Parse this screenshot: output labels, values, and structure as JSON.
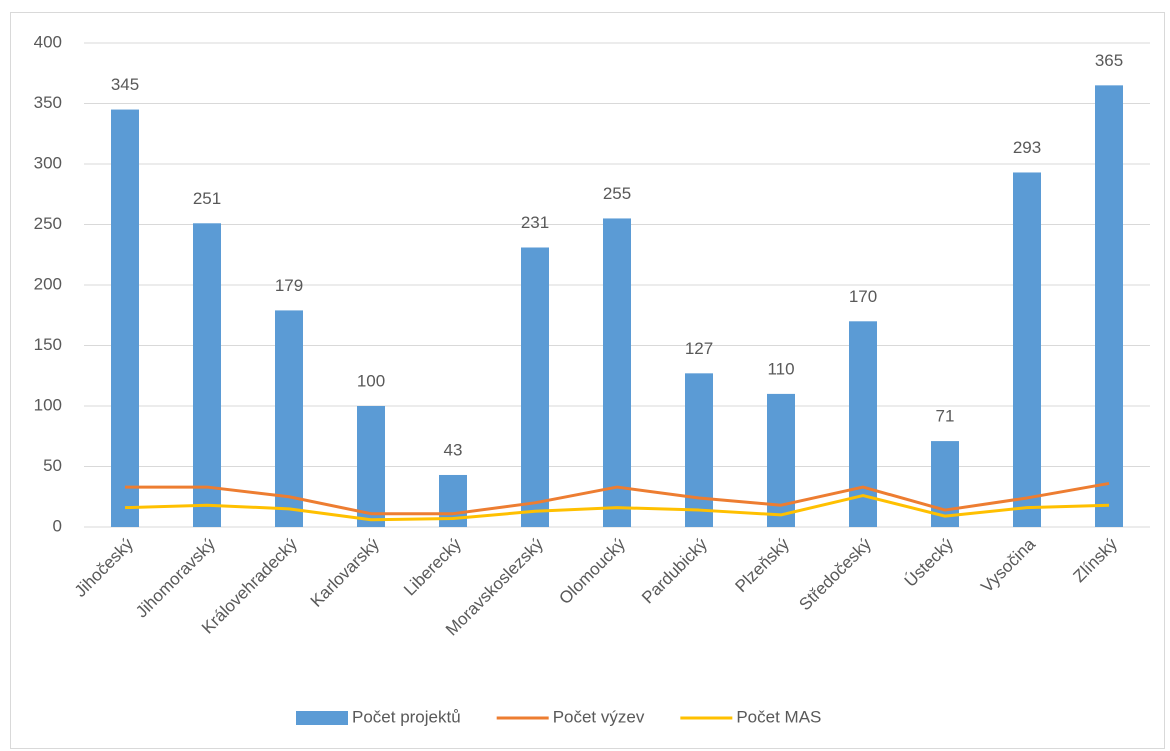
{
  "chart_data": {
    "type": "bar",
    "categories": [
      "Jihočeský",
      "Jihomoravský",
      "Královehradecký",
      "Karlovarský",
      "Liberecký",
      "Moravskoslezský",
      "Olomoucký",
      "Pardubický",
      "Plzeňský",
      "Středočeský",
      "Ústecký",
      "Vysočina",
      "Zlínský"
    ],
    "series": [
      {
        "name": "Počet projektů",
        "type": "bar",
        "color": "#5b9bd5",
        "values": [
          345,
          251,
          179,
          100,
          43,
          231,
          255,
          127,
          110,
          170,
          71,
          293,
          365
        ]
      },
      {
        "name": "Počet výzev",
        "type": "line",
        "color": "#ed7d31",
        "values": [
          33,
          33,
          25,
          11,
          11,
          20,
          33,
          24,
          18,
          33,
          14,
          24,
          36
        ]
      },
      {
        "name": "Počet MAS",
        "type": "line",
        "color": "#ffc000",
        "values": [
          16,
          18,
          15,
          6,
          7,
          13,
          16,
          14,
          10,
          26,
          9,
          16,
          18
        ]
      }
    ],
    "ylim": [
      0,
      400
    ],
    "yticks": [
      0,
      50,
      100,
      150,
      200,
      250,
      300,
      350,
      400
    ],
    "grid": true,
    "legend": "bottom"
  }
}
